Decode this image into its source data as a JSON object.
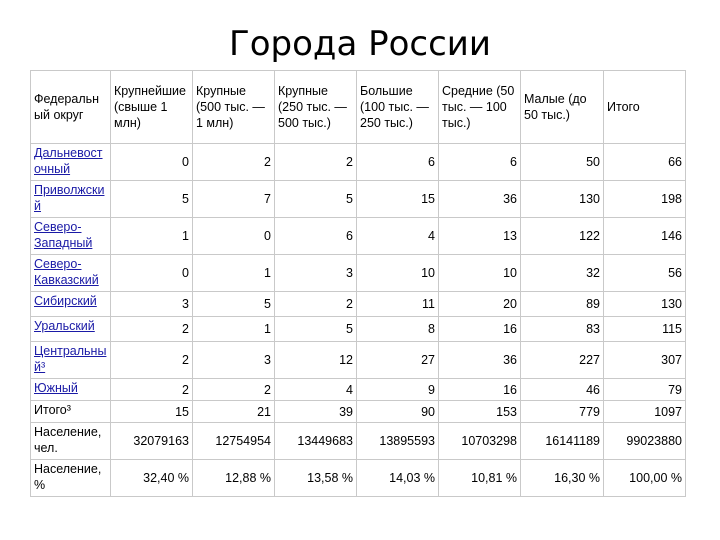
{
  "title": "Города России",
  "headers": [
    "Федеральн ый округ",
    "Крупнейшие (свыше 1 млн)",
    "Крупные (500 тыс. — 1 млн)",
    "Крупные (250 тыс. — 500 тыс.)",
    "Большие (100 тыс. — 250 тыс.)",
    "Средние (50 тыс. — 100 тыс.)",
    "Малые (до 50 тыс.)",
    "Итого"
  ],
  "rows": [
    {
      "region": "Дальневост очный",
      "link": true,
      "values": [
        "0",
        "2",
        "2",
        "6",
        "6",
        "50",
        "66"
      ]
    },
    {
      "region": "Приволжски й",
      "link": true,
      "values": [
        "5",
        "7",
        "5",
        "15",
        "36",
        "130",
        "198"
      ]
    },
    {
      "region": "Северо-Западный",
      "link": true,
      "values": [
        "1",
        "0",
        "6",
        "4",
        "13",
        "122",
        "146"
      ]
    },
    {
      "region": "Северо-Кавказский",
      "link": true,
      "values": [
        "0",
        "1",
        "3",
        "10",
        "10",
        "32",
        "56"
      ]
    },
    {
      "region": "Сибирский",
      "link": true,
      "values": [
        "3",
        "5",
        "2",
        "11",
        "20",
        "89",
        "130"
      ]
    },
    {
      "region": "Уральский",
      "link": true,
      "values": [
        "2",
        "1",
        "5",
        "8",
        "16",
        "83",
        "115"
      ]
    },
    {
      "region": "Центральны й³",
      "link": true,
      "values": [
        "2",
        "3",
        "12",
        "27",
        "36",
        "227",
        "307"
      ]
    },
    {
      "region": "Южный",
      "link": true,
      "values": [
        "2",
        "2",
        "4",
        "9",
        "16",
        "46",
        "79"
      ]
    },
    {
      "region": "Итого³",
      "link": false,
      "values": [
        "15",
        "21",
        "39",
        "90",
        "153",
        "779",
        "1097"
      ]
    },
    {
      "region": "Население, чел.",
      "link": false,
      "values": [
        "32079163",
        "12754954",
        "13449683",
        "13895593",
        "10703298",
        "16141189",
        "99023880"
      ]
    },
    {
      "region": "Население, %",
      "link": false,
      "values": [
        "32,40 %",
        "12,88 %",
        "13,58 %",
        "14,03 %",
        "10,81 %",
        "16,30 %",
        "100,00 %"
      ]
    }
  ]
}
